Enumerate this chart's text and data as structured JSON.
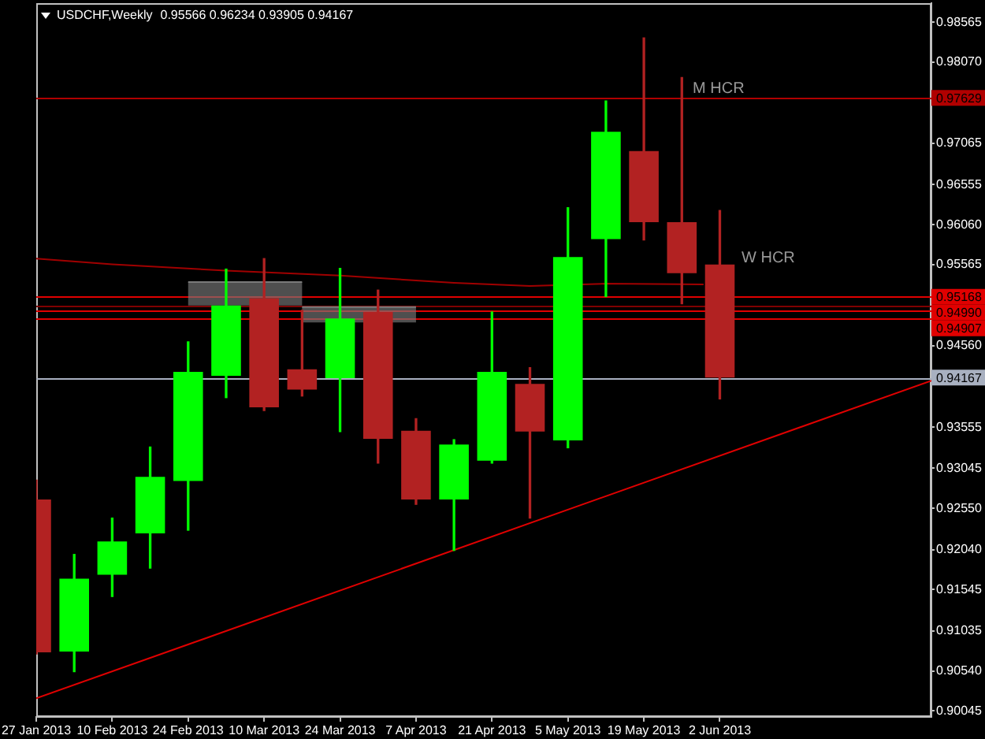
{
  "chart_data": {
    "type": "candlestick",
    "title": "USDCHF,Weekly",
    "subtitle": "0.95566 0.96234 0.93905 0.94167",
    "x": [
      "2013-01-27",
      "2013-02-03",
      "2013-02-10",
      "2013-02-17",
      "2013-02-24",
      "2013-03-03",
      "2013-03-10",
      "2013-03-17",
      "2013-03-24",
      "2013-03-31",
      "2013-04-07",
      "2013-04-14",
      "2013-04-21",
      "2013-04-28",
      "2013-05-05",
      "2013-05-12",
      "2013-05-19",
      "2013-05-26",
      "2013-06-02"
    ],
    "ohlc": [
      [
        0.9266,
        0.929,
        0.9075,
        0.9077
      ],
      [
        0.9078,
        0.9198,
        0.9053,
        0.9168
      ],
      [
        0.9173,
        0.9243,
        0.9146,
        0.9214
      ],
      [
        0.9224,
        0.9331,
        0.9181,
        0.9294
      ],
      [
        0.9289,
        0.9461,
        0.9228,
        0.9424
      ],
      [
        0.9419,
        0.9551,
        0.9392,
        0.9506
      ],
      [
        0.9515,
        0.9564,
        0.9376,
        0.938
      ],
      [
        0.9427,
        0.95,
        0.9394,
        0.9402
      ],
      [
        0.9416,
        0.9552,
        0.935,
        0.949
      ],
      [
        0.9498,
        0.9525,
        0.9311,
        0.9341
      ],
      [
        0.9351,
        0.9366,
        0.926,
        0.9266
      ],
      [
        0.9266,
        0.934,
        0.9203,
        0.9334
      ],
      [
        0.9314,
        0.9498,
        0.9311,
        0.9424
      ],
      [
        0.9409,
        0.9429,
        0.9243,
        0.935
      ],
      [
        0.9339,
        0.9627,
        0.933,
        0.9566
      ],
      [
        0.9588,
        0.9759,
        0.9517,
        0.9721
      ],
      [
        0.9697,
        0.9837,
        0.9587,
        0.9609
      ],
      [
        0.9609,
        0.9788,
        0.9508,
        0.9546
      ],
      [
        0.95566,
        0.96234,
        0.93905,
        0.94167
      ]
    ],
    "colors": [
      "#b22222",
      "#00ff00",
      "#00ff00",
      "#00ff00",
      "#00ff00",
      "#00ff00",
      "#b22222",
      "#b22222",
      "#00ff00",
      "#b22222",
      "#b22222",
      "#00ff00",
      "#00ff00",
      "#b22222",
      "#00ff00",
      "#00ff00",
      "#b22222",
      "#b22222",
      "#b22222"
    ],
    "xlim": [
      "2013-01-27",
      "2013-07-11"
    ],
    "xticks": [
      {
        "value": "2013-01-27",
        "label": "27 Jan 2013"
      },
      {
        "value": "2013-02-10",
        "label": "10 Feb 2013"
      },
      {
        "value": "2013-02-24",
        "label": "24 Feb 2013"
      },
      {
        "value": "2013-03-10",
        "label": "10 Mar 2013"
      },
      {
        "value": "2013-03-24",
        "label": "24 Mar 2013"
      },
      {
        "value": "2013-04-07",
        "label": "7 Apr 2013"
      },
      {
        "value": "2013-04-21",
        "label": "21 Apr 2013"
      },
      {
        "value": "2013-05-05",
        "label": "5 May 2013"
      },
      {
        "value": "2013-05-19",
        "label": "19 May 2013"
      },
      {
        "value": "2013-06-02",
        "label": "2 Jun 2013"
      }
    ],
    "ylim": [
      0.8997,
      0.988
    ],
    "yticks": [
      0.98565,
      {
        "value": 0.9807,
        "label": "0.98070"
      },
      0.97065,
      0.96555,
      {
        "value": 0.9606,
        "label": "0.96060"
      },
      0.95565,
      {
        "value": 0.9456,
        "label": "0.94560"
      },
      0.93555,
      0.93045,
      {
        "value": 0.9255,
        "label": "0.92550"
      },
      {
        "value": 0.9204,
        "label": "0.92040"
      },
      0.91545,
      0.91035,
      {
        "value": 0.9054,
        "label": "0.90540"
      },
      0.90045
    ],
    "series": [
      {
        "type": "line",
        "x": [
          "2013-02-24",
          "2013-03-17"
        ],
        "values": [
          0.9535,
          0.9535
        ],
        "lower": [
          0.9506,
          0.9506
        ],
        "upper": [
          0.9535,
          0.9535
        ],
        "color": "#7a7a7a"
      },
      {
        "type": "line",
        "x": [
          "2013-03-17",
          "2013-04-07"
        ],
        "values": [
          0.9504,
          0.9504
        ],
        "lower": [
          0.9485,
          0.9485
        ],
        "upper": [
          0.9504,
          0.9504
        ],
        "color": "#7a7a7a"
      },
      {
        "type": "line",
        "x": [
          "2013-01-27",
          "2013-02-10",
          "2013-03-03",
          "2013-03-24",
          "2013-04-14",
          "2013-04-28",
          "2013-05-12",
          "2013-05-30"
        ],
        "values": [
          0.9564,
          0.9557,
          0.9549,
          0.9543,
          0.9534,
          0.953,
          0.9533,
          0.9532
        ],
        "color": "#a00000"
      },
      {
        "type": "line",
        "x": [
          "2013-01-27",
          "2013-07-11"
        ],
        "values": [
          0.902,
          0.9413
        ],
        "color": "#e00000"
      }
    ],
    "ref_lines": [
      {
        "axis": "y",
        "value": 0.97629,
        "label": "0.97629",
        "color": "#b00000"
      },
      {
        "axis": "y",
        "value": 0.95168,
        "label": "0.95168",
        "color": "#e00000"
      },
      {
        "axis": "y",
        "value": 0.9505,
        "label": null,
        "color": "#800000"
      },
      {
        "axis": "y",
        "value": 0.9499,
        "label": "0.94990",
        "color": "#e00000"
      },
      {
        "axis": "y",
        "value": 0.94907,
        "label": "0.94907",
        "color": "#e00000"
      },
      {
        "axis": "y",
        "value": 0.94167,
        "label": "0.94167",
        "color": "#a8b0c0"
      }
    ],
    "annotations": [
      {
        "text": "M HCR",
        "x": "2013-05-28",
        "y": 0.97629
      },
      {
        "text": "W HCR",
        "x": "2013-06-06",
        "y": 0.9553
      }
    ]
  }
}
